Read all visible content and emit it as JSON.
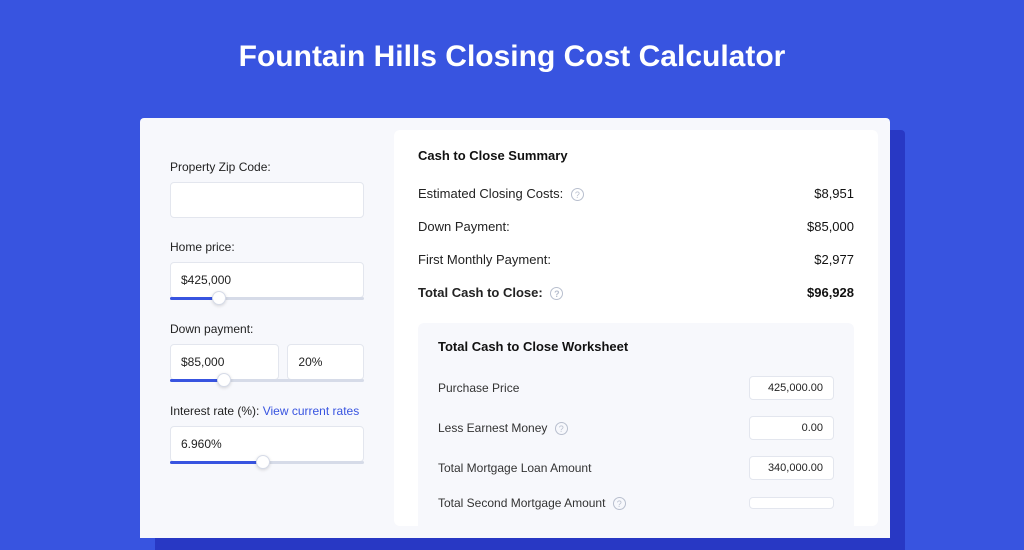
{
  "page": {
    "title": "Fountain Hills Closing Cost Calculator",
    "background_color": "#3854e0",
    "shadow_color": "#2838c4",
    "card_background": "#f7f8fc",
    "panel_background": "#ffffff"
  },
  "form": {
    "zip": {
      "label": "Property Zip Code:",
      "value": ""
    },
    "home_price": {
      "label": "Home price:",
      "value": "$425,000",
      "slider_pct": 25
    },
    "down_payment": {
      "label": "Down payment:",
      "value": "$85,000",
      "pct_value": "20%",
      "slider_pct": 28
    },
    "interest_rate": {
      "label": "Interest rate (%):",
      "link_text": "View current rates",
      "value": "6.960%",
      "slider_pct": 48
    }
  },
  "summary": {
    "title": "Cash to Close Summary",
    "rows": [
      {
        "label": "Estimated Closing Costs:",
        "help": true,
        "value": "$8,951"
      },
      {
        "label": "Down Payment:",
        "help": false,
        "value": "$85,000"
      },
      {
        "label": "First Monthly Payment:",
        "help": false,
        "value": "$2,977"
      }
    ],
    "total": {
      "label": "Total Cash to Close:",
      "help": true,
      "value": "$96,928"
    }
  },
  "worksheet": {
    "title": "Total Cash to Close Worksheet",
    "rows": [
      {
        "label": "Purchase Price",
        "help": false,
        "value": "425,000.00"
      },
      {
        "label": "Less Earnest Money",
        "help": true,
        "value": "0.00"
      },
      {
        "label": "Total Mortgage Loan Amount",
        "help": false,
        "value": "340,000.00"
      },
      {
        "label": "Total Second Mortgage Amount",
        "help": true,
        "value": ""
      }
    ]
  },
  "styling": {
    "input_border": "#e3e6ee",
    "slider_track": "#d6dbe8",
    "slider_fill": "#3854e0",
    "link_color": "#3854e0",
    "help_icon_color": "#b8bfce"
  }
}
